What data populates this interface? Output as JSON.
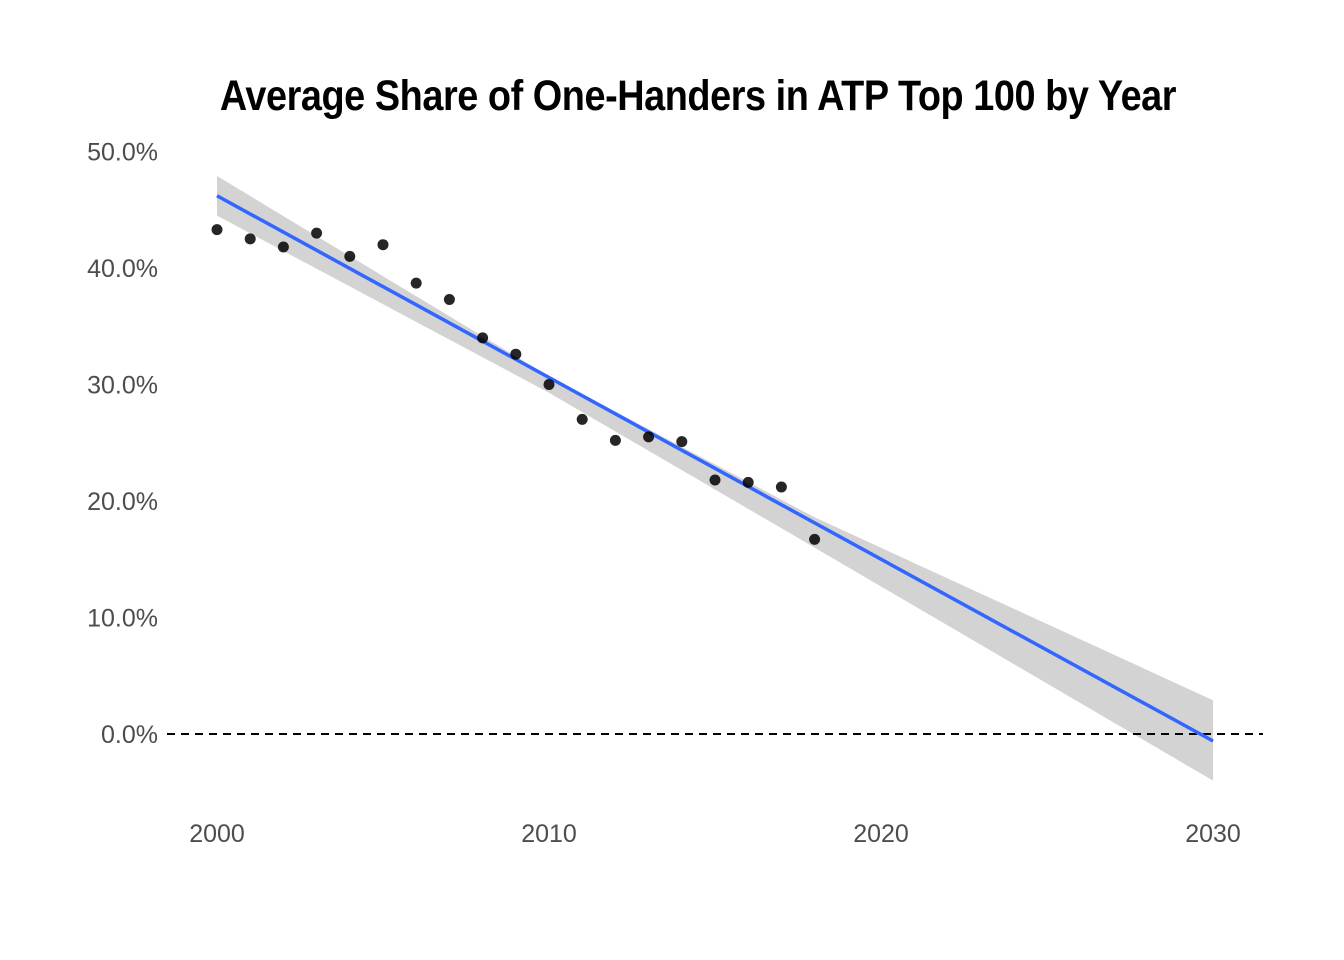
{
  "chart_data": {
    "type": "scatter",
    "title": "Average Share of One-Handers in ATP Top 100 by Year",
    "xlabel": "",
    "ylabel": "",
    "xlim": [
      1999.5,
      2031.5
    ],
    "ylim": [
      -6,
      50.5
    ],
    "x_ticks": [
      2000,
      2010,
      2020,
      2030
    ],
    "x_tick_labels": [
      "2000",
      "2010",
      "2020",
      "2030"
    ],
    "y_ticks": [
      0,
      10,
      20,
      30,
      40,
      50
    ],
    "y_tick_labels": [
      "0.0%",
      "10.0%",
      "20.0%",
      "30.0%",
      "40.0%",
      "50.0%"
    ],
    "grid": false,
    "points": {
      "x": [
        2000,
        2001,
        2002,
        2003,
        2004,
        2005,
        2006,
        2007,
        2008,
        2009,
        2010,
        2011,
        2012,
        2013,
        2014,
        2015,
        2016,
        2017,
        2018
      ],
      "y": [
        43.3,
        42.5,
        41.8,
        43.0,
        41.0,
        42.0,
        38.7,
        37.3,
        34.0,
        32.6,
        30.0,
        27.0,
        25.2,
        25.5,
        25.1,
        21.8,
        21.6,
        21.2,
        16.7
      ],
      "color": "#000000"
    },
    "trend_line": {
      "method": "linear",
      "x": [
        2000,
        2030
      ],
      "y": [
        46.2,
        -0.6
      ],
      "color": "#3366ff"
    },
    "confidence_band": {
      "x": [
        2000,
        2010,
        2018,
        2030
      ],
      "upper": [
        47.9,
        30.7,
        18.6,
        2.9
      ],
      "lower": [
        44.5,
        29.3,
        16.0,
        -4.0
      ],
      "color": "#d3d3d3"
    },
    "reference_line": {
      "y": 0,
      "style": "dashed",
      "color": "#000000"
    }
  }
}
